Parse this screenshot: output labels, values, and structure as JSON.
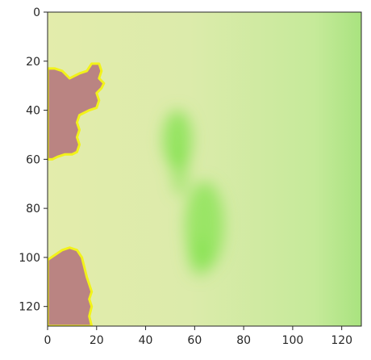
{
  "chart_data": {
    "type": "heatmap",
    "title": "",
    "xlabel": "",
    "ylabel": "",
    "xlim": [
      0,
      128
    ],
    "ylim": [
      128,
      0
    ],
    "x_ticks": [
      0,
      20,
      40,
      60,
      80,
      100,
      120
    ],
    "y_ticks": [
      0,
      20,
      40,
      60,
      80,
      100,
      120
    ],
    "x_tick_labels": [
      "0",
      "20",
      "40",
      "60",
      "80",
      "100",
      "120"
    ],
    "y_tick_labels": [
      "0",
      "20",
      "40",
      "60",
      "80",
      "100",
      "120"
    ],
    "grid": false,
    "colors": {
      "background_gradient": [
        "#e3ecab",
        "#dcebab",
        "#c6ea9a",
        "#a9e37f"
      ],
      "green_patch": "#7fe24a",
      "masked_region_fill": "#ba8482",
      "masked_region_outline": "#f2f21a",
      "axis": "#262626"
    },
    "regions": [
      {
        "label": "masked-region-top-left",
        "outline": [
          [
            0,
            23
          ],
          [
            3,
            23
          ],
          [
            6,
            24
          ],
          [
            9,
            27
          ],
          [
            11,
            26
          ],
          [
            13,
            25
          ],
          [
            16,
            24
          ],
          [
            18,
            21
          ],
          [
            21,
            21
          ],
          [
            22,
            24
          ],
          [
            21,
            27
          ],
          [
            23,
            29
          ],
          [
            22,
            31
          ],
          [
            20,
            33
          ],
          [
            21,
            36
          ],
          [
            20,
            39
          ],
          [
            17,
            40
          ],
          [
            13,
            42
          ],
          [
            12,
            45
          ],
          [
            13,
            48
          ],
          [
            12,
            51
          ],
          [
            13,
            54
          ],
          [
            12,
            57
          ],
          [
            10,
            58
          ],
          [
            7,
            58
          ],
          [
            4,
            59
          ],
          [
            2,
            60
          ],
          [
            0,
            60
          ]
        ]
      },
      {
        "label": "masked-region-bottom-left",
        "outline": [
          [
            0,
            101
          ],
          [
            3,
            99
          ],
          [
            6,
            97
          ],
          [
            9,
            96
          ],
          [
            12,
            97
          ],
          [
            14,
            100
          ],
          [
            15,
            104
          ],
          [
            16,
            108
          ],
          [
            17,
            111
          ],
          [
            18,
            114
          ],
          [
            17,
            117
          ],
          [
            18,
            120
          ],
          [
            17,
            124
          ],
          [
            18,
            128
          ],
          [
            0,
            128
          ]
        ]
      }
    ],
    "green_blobs": [
      {
        "label": "green-blob-upper",
        "cx": 53,
        "cy": 52,
        "rx": 6,
        "ry": 12,
        "opacity": 0.75
      },
      {
        "label": "green-blob-middle",
        "cx": 54,
        "cy": 65,
        "rx": 3.5,
        "ry": 10,
        "opacity": 0.55
      },
      {
        "label": "green-blob-lower",
        "cx": 64,
        "cy": 87,
        "rx": 8,
        "ry": 18,
        "opacity": 0.7
      },
      {
        "label": "green-blob-lower-tail",
        "cx": 62,
        "cy": 100,
        "rx": 5,
        "ry": 8,
        "opacity": 0.45
      }
    ]
  }
}
